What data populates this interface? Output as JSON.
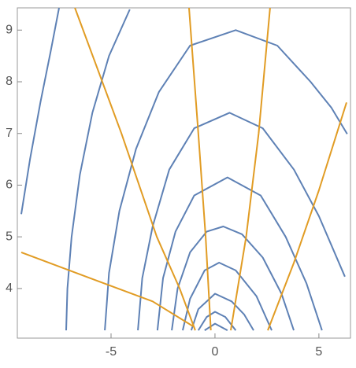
{
  "chart_data": {
    "type": "line",
    "xlim": [
      -9.51,
      6.52
    ],
    "ylim": [
      3.04,
      9.43
    ],
    "xticks": [
      -5,
      0,
      5
    ],
    "yticks": [
      4,
      5,
      6,
      7,
      8,
      9
    ],
    "grid": false,
    "series": [
      {
        "color": "#5e81b5",
        "x": [
          -9.32,
          -8.9,
          -8.4,
          -7.9,
          -7.5
        ],
        "values": [
          5.44,
          6.5,
          7.6,
          8.6,
          9.43
        ]
      },
      {
        "color": "#5e81b5",
        "x": [
          -7.16,
          -7.1,
          -6.9,
          -6.5,
          -5.9,
          -5.1,
          -4.1
        ],
        "values": [
          3.19,
          4,
          5,
          6.2,
          7.4,
          8.5,
          9.4
        ]
      },
      {
        "color": "#5e81b5",
        "x": [
          -5.3,
          -5.1,
          -4.6,
          -3.8,
          -2.7,
          -1.2,
          1,
          3,
          4.6,
          5.6,
          6.36
        ],
        "values": [
          3.19,
          4.3,
          5.5,
          6.7,
          7.8,
          8.7,
          9.0,
          8.7,
          8.0,
          7.5,
          6.99
        ]
      },
      {
        "color": "#5e81b5",
        "x": [
          -3.71,
          -3.5,
          -3.0,
          -2.2,
          -1.0,
          0.7,
          2.3,
          3.8,
          5.0,
          6.25
        ],
        "values": [
          3.19,
          4.2,
          5.2,
          6.3,
          7.1,
          7.4,
          7.1,
          6.3,
          5.4,
          4.23
        ]
      },
      {
        "color": "#5e81b5",
        "x": [
          -2.77,
          -2.5,
          -1.9,
          -1.0,
          0.6,
          2.2,
          3.4,
          4.4,
          5.15
        ],
        "values": [
          3.19,
          4.2,
          5.1,
          5.8,
          6.15,
          5.8,
          5.0,
          4.1,
          3.19
        ]
      },
      {
        "color": "#5e81b5",
        "x": [
          -2.08,
          -1.8,
          -1.2,
          -0.4,
          0.4,
          1.3,
          2.3,
          3.2,
          3.79
        ],
        "values": [
          3.19,
          4.0,
          4.7,
          5.1,
          5.2,
          5.05,
          4.6,
          3.9,
          3.19
        ]
      },
      {
        "color": "#5e81b5",
        "x": [
          -1.55,
          -1.2,
          -0.5,
          0.2,
          1.0,
          2.0,
          2.73
        ],
        "values": [
          3.19,
          3.8,
          4.35,
          4.5,
          4.35,
          3.85,
          3.19
        ]
      },
      {
        "color": "#5e81b5",
        "x": [
          -1.14,
          -0.8,
          0,
          0.8,
          1.4,
          1.86
        ],
        "values": [
          3.19,
          3.6,
          3.9,
          3.75,
          3.5,
          3.19
        ]
      },
      {
        "color": "#5e81b5",
        "x": [
          -0.8,
          -0.4,
          0,
          0.5,
          1.0
        ],
        "values": [
          3.19,
          3.45,
          3.55,
          3.45,
          3.19
        ]
      },
      {
        "color": "#5e81b5",
        "x": [
          -0.5,
          0,
          0.6
        ],
        "values": [
          3.19,
          3.32,
          3.19
        ]
      },
      {
        "color": "#e19c24",
        "x": [
          -9.32,
          -6,
          -3,
          -1.06
        ],
        "values": [
          4.7,
          4.2,
          3.75,
          3.27
        ]
      },
      {
        "color": "#e19c24",
        "x": [
          -6.74,
          -4.5,
          -2.8,
          -1.7,
          -0.95
        ],
        "values": [
          9.43,
          7.0,
          5.0,
          4.0,
          3.19
        ]
      },
      {
        "color": "#e19c24",
        "x": [
          -1.25,
          -0.8,
          -0.45,
          -0.2
        ],
        "values": [
          9.43,
          7,
          5,
          3.19
        ]
      },
      {
        "color": "#e19c24",
        "x": [
          2.65,
          2.1,
          1.5,
          0.76
        ],
        "values": [
          9.43,
          7,
          5,
          3.19
        ]
      },
      {
        "color": "#e19c24",
        "x": [
          6.33,
          5.0,
          3.8,
          2.54
        ],
        "values": [
          7.6,
          5.9,
          4.5,
          3.19
        ]
      }
    ]
  }
}
